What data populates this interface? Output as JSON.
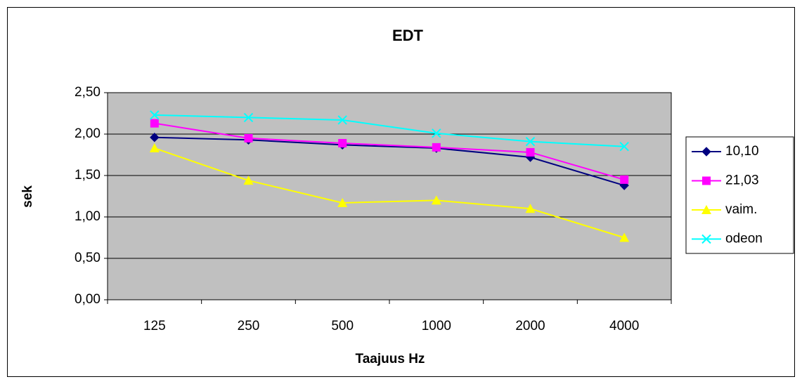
{
  "chart_data": {
    "type": "line",
    "title": "EDT",
    "x_label": "Taajuus Hz",
    "y_label": "sek",
    "categories": [
      "125",
      "250",
      "500",
      "1000",
      "2000",
      "4000"
    ],
    "series": [
      {
        "name": "10,10",
        "color": "#000080",
        "marker": "diamond",
        "values": [
          1.96,
          1.93,
          1.87,
          1.83,
          1.72,
          1.38
        ]
      },
      {
        "name": "21,03",
        "color": "#ff00ff",
        "marker": "square",
        "values": [
          2.13,
          1.95,
          1.89,
          1.84,
          1.78,
          1.45
        ]
      },
      {
        "name": "vaim.",
        "color": "#ffff00",
        "marker": "triangle",
        "values": [
          1.83,
          1.44,
          1.17,
          1.2,
          1.1,
          0.75
        ]
      },
      {
        "name": "odeon",
        "color": "#00ffff",
        "marker": "x",
        "values": [
          2.23,
          2.2,
          2.17,
          2.01,
          1.91,
          1.85
        ]
      }
    ],
    "ylim": [
      0,
      2.5
    ],
    "yticks": [
      {
        "value": 0,
        "label": "0,00"
      },
      {
        "value": 0.5,
        "label": "0,50"
      },
      {
        "value": 1,
        "label": "1,00"
      },
      {
        "value": 1.5,
        "label": "1,50"
      },
      {
        "value": 2,
        "label": "2,00"
      },
      {
        "value": 2.5,
        "label": "2,50"
      }
    ],
    "grid": true,
    "legend": "right",
    "plot_background": "#c0c0c0"
  }
}
